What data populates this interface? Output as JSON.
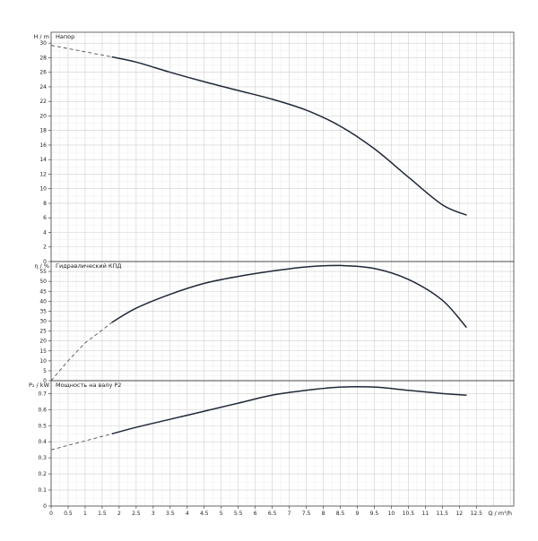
{
  "chart_data": [
    {
      "type": "line",
      "title": "Напор",
      "ylabel": "H / m",
      "xlabel": "",
      "xlim": [
        0,
        13.6
      ],
      "ylim": [
        0,
        31.5
      ],
      "x_ticks": [
        0,
        0.5,
        1,
        1.5,
        2,
        2.5,
        3,
        3.5,
        4,
        4.5,
        5,
        5.5,
        6,
        6.5,
        7,
        7.5,
        8,
        8.5,
        9,
        9.5,
        10,
        10.5,
        11,
        11.5,
        12,
        12.5
      ],
      "y_ticks": [
        0,
        2,
        4,
        6,
        8,
        10,
        12,
        14,
        16,
        18,
        20,
        22,
        24,
        26,
        28,
        30
      ],
      "grid": true,
      "series": [
        {
          "dashed_extension": [
            [
              0,
              29.7
            ],
            [
              1.8,
              28.1
            ]
          ],
          "points": [
            [
              1.8,
              28.1
            ],
            [
              2.5,
              27.4
            ],
            [
              3.5,
              26.0
            ],
            [
              4.5,
              24.7
            ],
            [
              5.5,
              23.5
            ],
            [
              6.5,
              22.3
            ],
            [
              7.5,
              20.8
            ],
            [
              8.5,
              18.6
            ],
            [
              9.5,
              15.5
            ],
            [
              10.5,
              11.6
            ],
            [
              11.5,
              7.8
            ],
            [
              12.2,
              6.4
            ]
          ]
        }
      ]
    },
    {
      "type": "line",
      "title": "Гидравлический КПД",
      "ylabel": "η / %",
      "xlabel": "",
      "xlim": [
        0,
        13.6
      ],
      "ylim": [
        0,
        60
      ],
      "x_ticks": [
        0,
        0.5,
        1,
        1.5,
        2,
        2.5,
        3,
        3.5,
        4,
        4.5,
        5,
        5.5,
        6,
        6.5,
        7,
        7.5,
        8,
        8.5,
        9,
        9.5,
        10,
        10.5,
        11,
        11.5,
        12,
        12.5
      ],
      "y_ticks": [
        0,
        5,
        10,
        15,
        20,
        25,
        30,
        35,
        40,
        45,
        50,
        55
      ],
      "grid": true,
      "series": [
        {
          "dashed_extension": [
            [
              0,
              0
            ],
            [
              0.5,
              10
            ],
            [
              1,
              19
            ],
            [
              1.5,
              25.5
            ],
            [
              1.8,
              29.5
            ]
          ],
          "points": [
            [
              1.8,
              29.5
            ],
            [
              2.5,
              36.5
            ],
            [
              3.5,
              43.5
            ],
            [
              4.5,
              49
            ],
            [
              5.5,
              52.5
            ],
            [
              6.5,
              55.2
            ],
            [
              7.5,
              57.3
            ],
            [
              8.5,
              58
            ],
            [
              9.5,
              56.5
            ],
            [
              10.5,
              51
            ],
            [
              11.5,
              40.5
            ],
            [
              12.2,
              27
            ]
          ]
        }
      ]
    },
    {
      "type": "line",
      "title": "Мощность на валу P2",
      "ylabel": "P₂ / kW",
      "xlabel": "Q / m³/h",
      "xlim": [
        0,
        13.6
      ],
      "ylim": [
        0,
        0.78
      ],
      "x_ticks": [
        0,
        0.5,
        1,
        1.5,
        2,
        2.5,
        3,
        3.5,
        4,
        4.5,
        5,
        5.5,
        6,
        6.5,
        7,
        7.5,
        8,
        8.5,
        9,
        9.5,
        10,
        10.5,
        11,
        11.5,
        12,
        12.5
      ],
      "y_ticks": [
        0,
        0.1,
        0.2,
        0.3,
        0.4,
        0.5,
        0.6,
        0.7
      ],
      "grid": true,
      "series": [
        {
          "dashed_extension": [
            [
              0,
              0.35
            ],
            [
              1.8,
              0.45
            ]
          ],
          "points": [
            [
              1.8,
              0.45
            ],
            [
              2.5,
              0.49
            ],
            [
              3.5,
              0.54
            ],
            [
              4.5,
              0.59
            ],
            [
              5.5,
              0.64
            ],
            [
              6.5,
              0.69
            ],
            [
              7.5,
              0.72
            ],
            [
              8.5,
              0.74
            ],
            [
              9.5,
              0.74
            ],
            [
              10.5,
              0.72
            ],
            [
              11.5,
              0.7
            ],
            [
              12.2,
              0.69
            ]
          ]
        }
      ]
    }
  ],
  "colors": {
    "curve": "#1f2937",
    "extension": "#555555",
    "frame": "#444444",
    "grid_major": "#cfcfcf",
    "grid_minor": "#eaeaea",
    "text": "#222222"
  }
}
